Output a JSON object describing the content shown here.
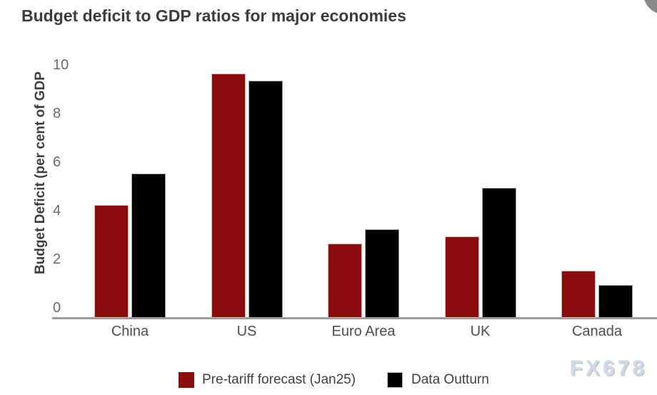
{
  "title": "Budget deficit to GDP ratios for major economies",
  "watermark": "FX678",
  "chart_data": {
    "type": "bar",
    "title": "Budget deficit to GDP ratios for major economies",
    "categories": [
      "China",
      "US",
      "Euro Area",
      "UK",
      "Canada"
    ],
    "series": [
      {
        "name": "Pre-tariff forecast (Jan25)",
        "color": "#8a0d0d",
        "values": [
          4.3,
          9.7,
          2.7,
          3.0,
          1.6
        ]
      },
      {
        "name": "Data Outturn",
        "color": "#000000",
        "values": [
          5.6,
          9.4,
          3.3,
          5.0,
          1.0
        ]
      }
    ],
    "xlabel": "",
    "ylabel": "Budget Deficit (per cent of GDP",
    "yticks": [
      0,
      2,
      4,
      6,
      8,
      10
    ],
    "ylim": [
      0,
      10
    ],
    "grid": false,
    "legend_position": "bottom"
  },
  "colors": {
    "title_text": "#3c3c3c",
    "axis_label_text": "#3e3e3e",
    "tick_text": "#696969",
    "category_text": "#4d4d4d",
    "legend_text": "#3f3f3f",
    "axis_line": "#9b9b9b",
    "series_pre_tariff": "#8a0d0d",
    "series_outturn": "#000000",
    "watermark_text": "#cbdbeb",
    "corner_circle": "#8a8a8a"
  }
}
